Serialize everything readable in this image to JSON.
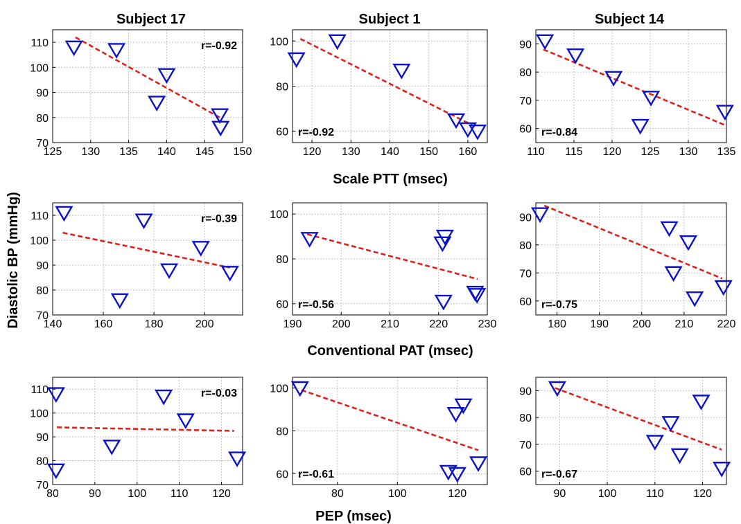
{
  "figure": {
    "ylabel": "Diastolic BP (mmHg)",
    "column_titles": [
      "Subject 17",
      "Subject 1",
      "Subject 14"
    ],
    "row_xlabels": [
      "Scale PTT (msec)",
      "Conventional PAT (msec)",
      "PEP (msec)"
    ]
  },
  "colors": {
    "marker": "#0a12c8",
    "fit_line": "#e0201a",
    "grid": "#9a9a9a"
  },
  "chart_data": [
    {
      "type": "scatter",
      "subject": "Subject 17",
      "predictor": "Scale PTT (msec)",
      "r_label": "r=-0.92",
      "xlim": [
        125,
        150
      ],
      "ylim": [
        70,
        115
      ],
      "xticks": [
        125,
        130,
        135,
        140,
        145,
        150
      ],
      "yticks": [
        70,
        80,
        90,
        100,
        110
      ],
      "x": [
        127.8,
        133.4,
        138.7,
        140.0,
        147.0,
        147.1
      ],
      "y": [
        108,
        107,
        86,
        97,
        81,
        76
      ],
      "fit": [
        [
          128,
          112
        ],
        [
          147,
          80
        ]
      ]
    },
    {
      "type": "scatter",
      "subject": "Subject 1",
      "predictor": "Scale PTT (msec)",
      "r_label": "r=-0.92",
      "xlim": [
        115,
        165
      ],
      "ylim": [
        55,
        105
      ],
      "xticks": [
        120,
        130,
        140,
        150,
        160
      ],
      "yticks": [
        60,
        80,
        100
      ],
      "x": [
        116,
        126.5,
        143,
        157,
        160,
        162.5
      ],
      "y": [
        92,
        100,
        87,
        65,
        61,
        60
      ],
      "fit": [
        [
          117,
          101
        ],
        [
          162,
          62
        ]
      ]
    },
    {
      "type": "scatter",
      "subject": "Subject 14",
      "predictor": "Scale PTT (msec)",
      "r_label": "r=-0.84",
      "xlim": [
        110,
        135
      ],
      "ylim": [
        55,
        95
      ],
      "xticks": [
        110,
        115,
        120,
        125,
        130,
        135
      ],
      "yticks": [
        60,
        70,
        80,
        90
      ],
      "x": [
        111.2,
        115.2,
        120.2,
        123.7,
        125.1,
        134.8
      ],
      "y": [
        91,
        86,
        78,
        61,
        71,
        66
      ],
      "fit": [
        [
          111,
          88
        ],
        [
          135,
          61
        ]
      ]
    },
    {
      "type": "scatter",
      "subject": "Subject 17",
      "predictor": "Conventional PAT (msec)",
      "r_label": "r=-0.39",
      "xlim": [
        140,
        215
      ],
      "ylim": [
        70,
        115
      ],
      "xticks": [
        140,
        160,
        180,
        200
      ],
      "yticks": [
        70,
        80,
        90,
        100,
        110
      ],
      "x": [
        144.5,
        166.5,
        176,
        186,
        198.5,
        210
      ],
      "y": [
        111,
        76,
        108,
        88,
        97,
        87
      ],
      "fit": [
        [
          144,
          103
        ],
        [
          210,
          89
        ]
      ]
    },
    {
      "type": "scatter",
      "subject": "Subject 1",
      "predictor": "Conventional PAT (msec)",
      "r_label": "r=-0.56",
      "xlim": [
        190,
        230
      ],
      "ylim": [
        55,
        105
      ],
      "xticks": [
        190,
        200,
        210,
        220,
        230
      ],
      "yticks": [
        60,
        80,
        100
      ],
      "x": [
        193.5,
        220.8,
        221.3,
        221.0,
        227.5,
        227.9
      ],
      "y": [
        89,
        87,
        90,
        61,
        65,
        64
      ],
      "fit": [
        [
          193,
          91
        ],
        [
          228,
          71
        ]
      ]
    },
    {
      "type": "scatter",
      "subject": "Subject 14",
      "predictor": "Conventional PAT (msec)",
      "r_label": "r=-0.75",
      "xlim": [
        175,
        220
      ],
      "ylim": [
        55,
        95
      ],
      "xticks": [
        180,
        190,
        200,
        210,
        220
      ],
      "yticks": [
        60,
        70,
        80,
        90
      ],
      "x": [
        176,
        206.5,
        207.5,
        211,
        212.5,
        219.3
      ],
      "y": [
        91,
        86,
        70,
        81,
        61,
        65
      ],
      "fit": [
        [
          177,
          94
        ],
        [
          219,
          68
        ]
      ]
    },
    {
      "type": "scatter",
      "subject": "Subject 17",
      "predictor": "PEP (msec)",
      "r_label": "r=-0.03",
      "xlim": [
        80,
        125
      ],
      "ylim": [
        70,
        115
      ],
      "xticks": [
        80,
        90,
        100,
        110,
        120
      ],
      "yticks": [
        70,
        80,
        90,
        100,
        110
      ],
      "x": [
        80.8,
        80.8,
        94.0,
        106.3,
        111.5,
        123.7
      ],
      "y": [
        108,
        76,
        86,
        107,
        97,
        81
      ],
      "fit": [
        [
          81,
          94
        ],
        [
          123,
          92.5
        ]
      ]
    },
    {
      "type": "scatter",
      "subject": "Subject 1",
      "predictor": "PEP (msec)",
      "r_label": "r=-0.61",
      "xlim": [
        65,
        130
      ],
      "ylim": [
        55,
        105
      ],
      "xticks": [
        80,
        100,
        120
      ],
      "yticks": [
        60,
        80,
        100
      ],
      "x": [
        67.5,
        117,
        119.5,
        120,
        122,
        127
      ],
      "y": [
        100,
        61,
        88,
        60,
        92,
        65
      ],
      "fit": [
        [
          68,
          99
        ],
        [
          127,
          71
        ]
      ]
    },
    {
      "type": "scatter",
      "subject": "Subject 14",
      "predictor": "PEP (msec)",
      "r_label": "r=-0.67",
      "xlim": [
        85,
        125
      ],
      "ylim": [
        55,
        95
      ],
      "xticks": [
        90,
        100,
        110,
        120
      ],
      "yticks": [
        60,
        70,
        80,
        90
      ],
      "x": [
        89.5,
        110,
        113.3,
        115.2,
        119.7,
        124
      ],
      "y": [
        91,
        71,
        78,
        66,
        86,
        61
      ],
      "fit": [
        [
          89,
          91
        ],
        [
          124,
          68
        ]
      ]
    }
  ]
}
